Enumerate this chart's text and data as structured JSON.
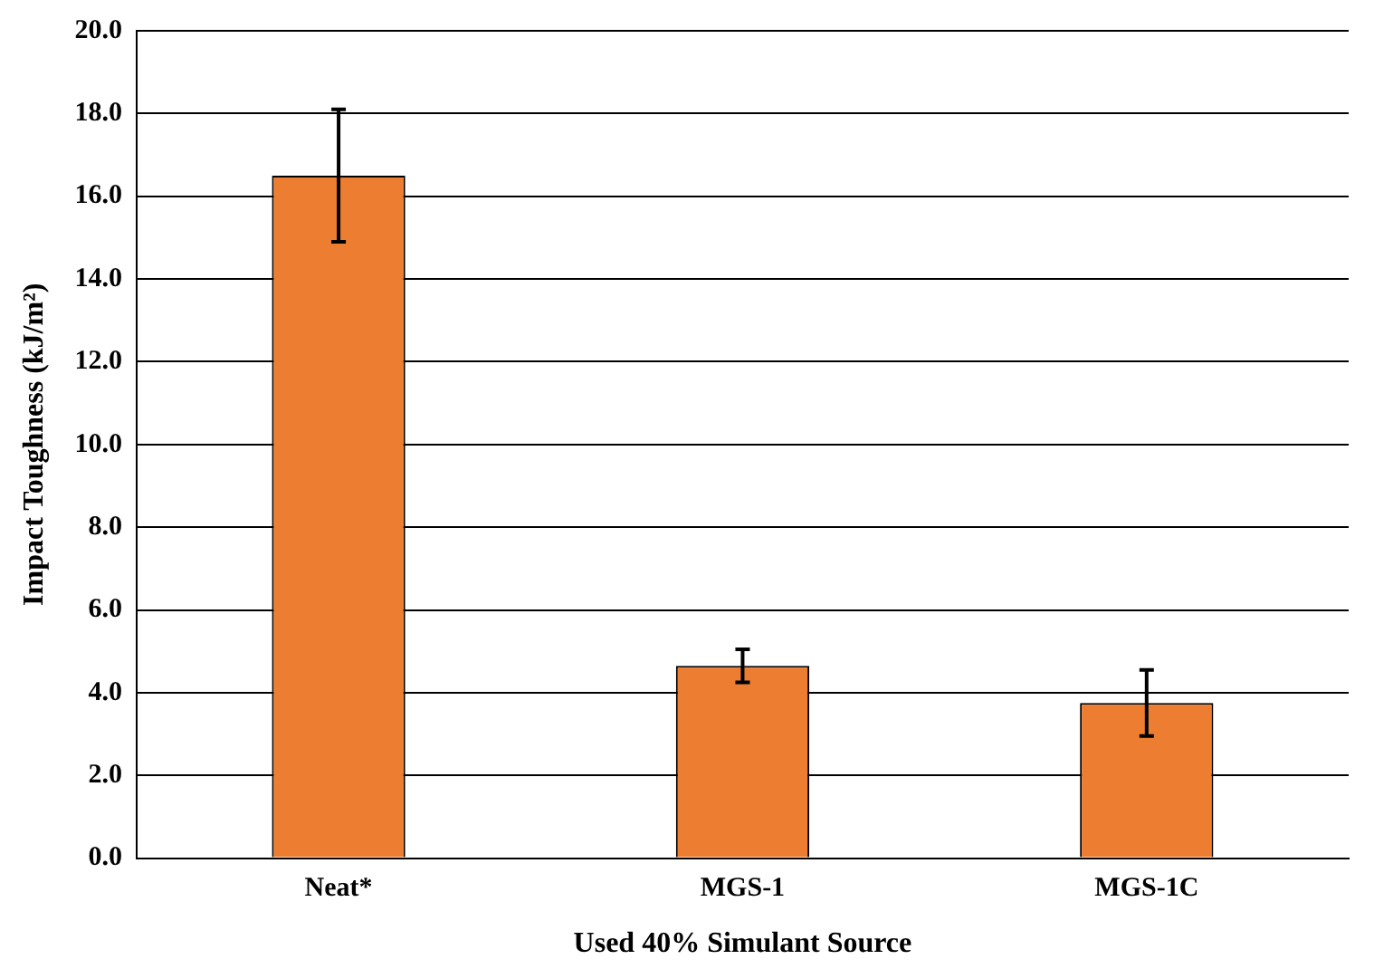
{
  "chart_data": {
    "type": "bar",
    "xlabel": "Used 40% Simulant Source",
    "ylabel": "Impact Toughness (kJ/m²)",
    "categories": [
      "Neat*",
      "MGS-1",
      "MGS-1C"
    ],
    "values": [
      16.5,
      4.65,
      3.75
    ],
    "errors": [
      1.6,
      0.4,
      0.8
    ],
    "color": "#ed7d31",
    "ylim": [
      0,
      20
    ],
    "yticks": [
      {
        "value": 0,
        "label": "0.0"
      },
      {
        "value": 2,
        "label": "2.0"
      },
      {
        "value": 4,
        "label": "4.0"
      },
      {
        "value": 6,
        "label": "6.0"
      },
      {
        "value": 8,
        "label": "8.0"
      },
      {
        "value": 10,
        "label": "10.0"
      },
      {
        "value": 12,
        "label": "12.0"
      },
      {
        "value": 14,
        "label": "14.0"
      },
      {
        "value": 16,
        "label": "16.0"
      },
      {
        "value": 18,
        "label": "18.0"
      },
      {
        "value": 20,
        "label": "20.0"
      }
    ],
    "grid": "y"
  }
}
